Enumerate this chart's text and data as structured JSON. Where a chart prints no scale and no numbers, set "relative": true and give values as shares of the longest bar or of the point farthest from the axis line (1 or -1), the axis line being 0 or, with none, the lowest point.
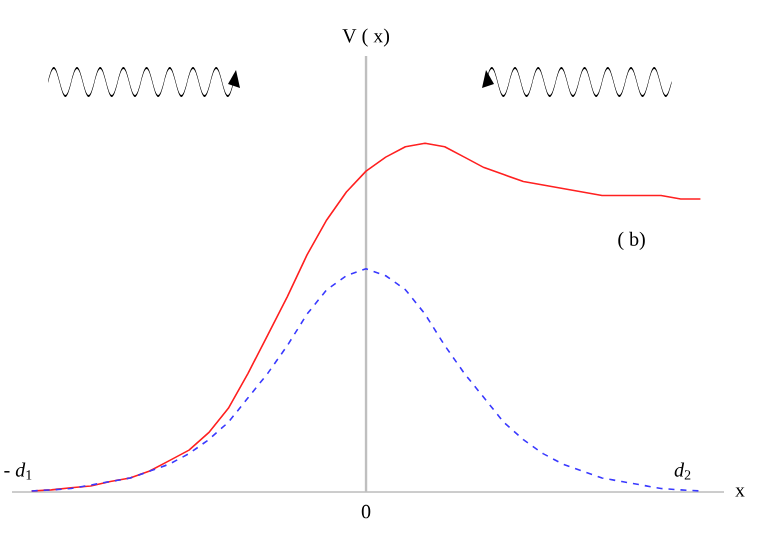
{
  "chart_data": {
    "type": "line",
    "relative": true,
    "xlabel": "x",
    "categories": [
      null,
      null,
      null,
      null,
      null,
      null,
      null,
      null,
      null,
      null,
      null,
      null,
      null,
      null,
      null,
      null,
      null,
      null,
      null,
      null,
      null,
      null,
      null,
      null,
      null,
      null,
      null,
      null,
      null,
      null,
      null,
      null,
      null,
      null,
      null
    ],
    "series": [
      {
        "color": "#ff2020",
        "line_style": "solid",
        "values": [
          0.003,
          0.006,
          0.012,
          0.017,
          0.03,
          0.04,
          0.06,
          0.09,
          0.12,
          0.17,
          0.24,
          0.34,
          0.45,
          0.56,
          0.68,
          0.78,
          0.86,
          0.92,
          0.96,
          0.99,
          1.0,
          0.99,
          0.96,
          0.93,
          0.91,
          0.89,
          0.88,
          0.87,
          0.86,
          0.85,
          0.85,
          0.85,
          0.85,
          0.84,
          0.84
        ]
      },
      {
        "color": "#3a3aff",
        "line_style": "dashed",
        "values": [
          0.003,
          0.006,
          0.01,
          0.02,
          0.03,
          0.04,
          0.06,
          0.08,
          0.11,
          0.15,
          0.2,
          0.27,
          0.34,
          0.42,
          0.51,
          0.58,
          0.62,
          0.64,
          0.62,
          0.58,
          0.51,
          0.42,
          0.34,
          0.27,
          0.2,
          0.15,
          0.11,
          0.08,
          0.06,
          0.04,
          0.03,
          0.02,
          0.01,
          0.006,
          0.003
        ]
      }
    ],
    "annotations": [
      "( b)",
      "- *d*$_{1}$",
      "*d*$_{2}$",
      "0",
      "V ( x)"
    ]
  }
}
